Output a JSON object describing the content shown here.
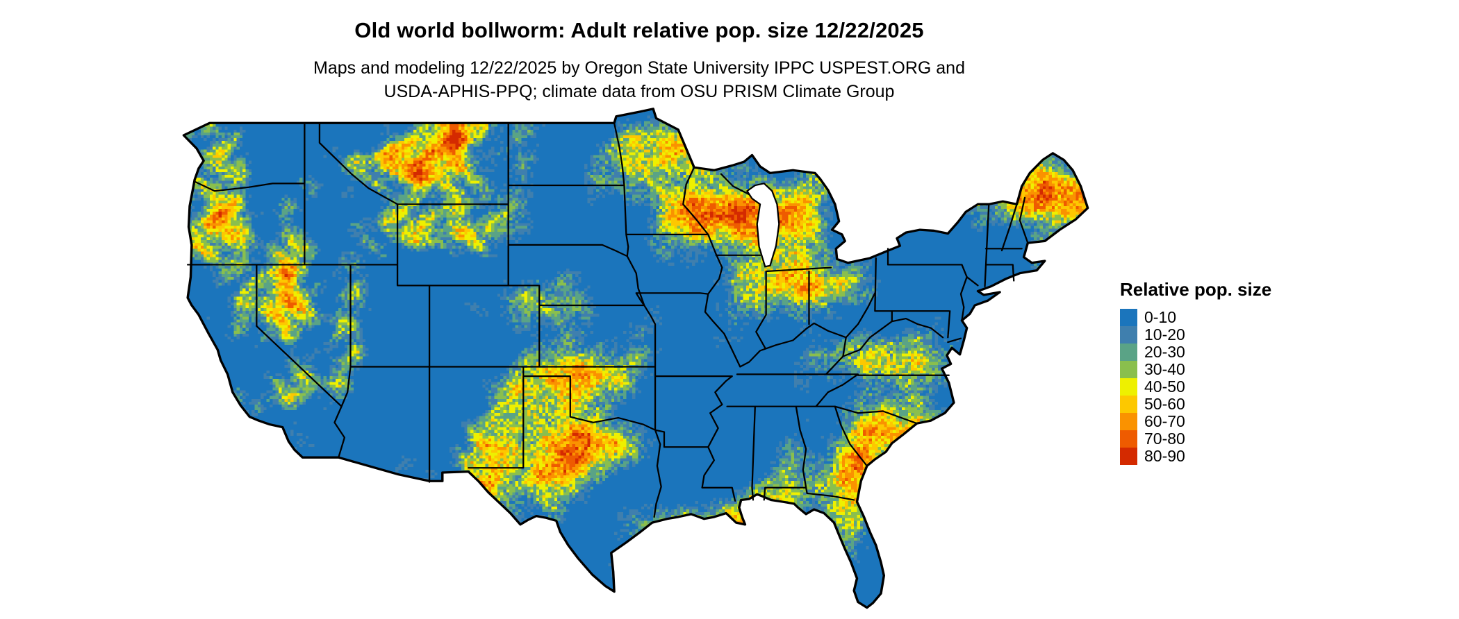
{
  "title": "Old world bollworm: Adult relative pop. size 12/22/2025",
  "subtitle": {
    "line1": "Maps and modeling 12/22/2025 by Oregon State University IPPC USPEST.ORG and",
    "line2": "USDA-APHIS-PPQ; climate data from OSU PRISM Climate Group"
  },
  "legend": {
    "title": "Relative pop. size",
    "items": [
      {
        "label": "0-10",
        "color": "#1b75bc"
      },
      {
        "label": "10-20",
        "color": "#3f7fae"
      },
      {
        "label": "20-30",
        "color": "#5aa386"
      },
      {
        "label": "30-40",
        "color": "#8abf4d"
      },
      {
        "label": "40-50",
        "color": "#eef000"
      },
      {
        "label": "50-60",
        "color": "#fdc800"
      },
      {
        "label": "60-70",
        "color": "#fa9200"
      },
      {
        "label": "70-80",
        "color": "#ee5b00"
      },
      {
        "label": "80-90",
        "color": "#d42a00"
      }
    ]
  },
  "map": {
    "base_color": "#1b75bc",
    "border_color": "#000000",
    "water_color": "#ffffff"
  }
}
